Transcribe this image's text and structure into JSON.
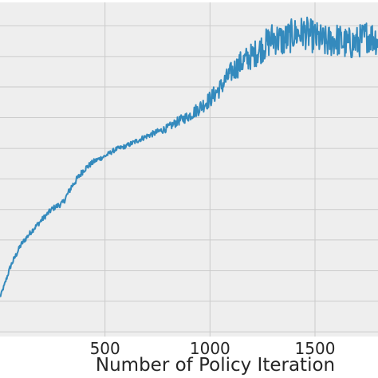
{
  "chart_data": {
    "type": "line",
    "title": "",
    "xlabel": "Number of Policy Iteration",
    "ylabel": "",
    "xlim": [
      0,
      1800
    ],
    "x_ticks": [
      500,
      1000,
      1500
    ],
    "x_tick_labels": [
      "500",
      "1000",
      "1500"
    ],
    "ylim": [
      0,
      1
    ],
    "y_tick_values": [
      0.014,
      0.106,
      0.197,
      0.289,
      0.38,
      0.472,
      0.563,
      0.655,
      0.747,
      0.838,
      0.93
    ],
    "grid": true,
    "background": "#eeeeee",
    "grid_color": "#cbcbcb",
    "series": [
      {
        "color": "#348abd",
        "anchors": {
          "x": [
            0,
            20,
            50,
            100,
            150,
            200,
            250,
            300,
            340,
            400,
            450,
            500,
            550,
            600,
            650,
            700,
            750,
            800,
            850,
            900,
            950,
            1000,
            1050,
            1100,
            1150,
            1200,
            1250,
            1300,
            1350,
            1400,
            1450,
            1500,
            1550,
            1600,
            1650,
            1700,
            1750,
            1800
          ],
          "y": [
            0.118,
            0.152,
            0.21,
            0.275,
            0.315,
            0.35,
            0.383,
            0.4,
            0.448,
            0.5,
            0.525,
            0.54,
            0.56,
            0.57,
            0.585,
            0.6,
            0.612,
            0.625,
            0.645,
            0.66,
            0.685,
            0.71,
            0.745,
            0.79,
            0.82,
            0.84,
            0.865,
            0.895,
            0.885,
            0.905,
            0.91,
            0.895,
            0.88,
            0.89,
            0.875,
            0.88,
            0.9,
            0.89
          ]
        },
        "noise_amplitude": [
          0.004,
          0.006,
          0.008,
          0.008,
          0.008,
          0.008,
          0.008,
          0.009,
          0.01,
          0.01,
          0.008,
          0.007,
          0.007,
          0.007,
          0.008,
          0.008,
          0.01,
          0.012,
          0.014,
          0.017,
          0.022,
          0.025,
          0.028,
          0.032,
          0.038,
          0.04,
          0.045,
          0.05,
          0.05,
          0.05,
          0.05,
          0.05,
          0.05,
          0.05,
          0.05,
          0.05,
          0.05,
          0.05
        ]
      }
    ]
  }
}
